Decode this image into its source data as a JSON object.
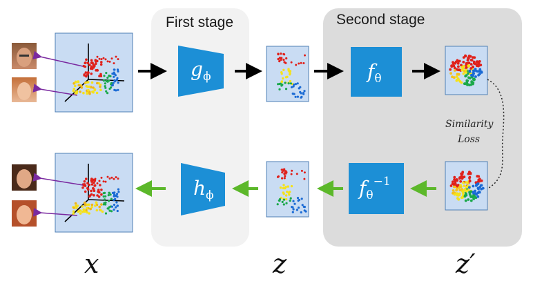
{
  "stages": {
    "first": "First stage",
    "second": "Second stage"
  },
  "similarity_loss": {
    "line1": "Similarity",
    "line2": "Loss"
  },
  "variables": {
    "x": "x",
    "z": "z",
    "z_prime": "z′"
  },
  "networks": {
    "encoder": {
      "symbol": "g",
      "subscript": "ϕ"
    },
    "flow": {
      "symbol": "f",
      "subscript": "θ"
    },
    "inverse_flow": {
      "symbol": "f",
      "subscript": "θ",
      "superscript": "−1"
    },
    "decoder": {
      "symbol": "h",
      "subscript": "ϕ"
    }
  },
  "colors": {
    "network_fill": "#1c8fd6",
    "panel_fill": "#c9dcf3",
    "forward_arrow": "#000000",
    "backward_arrow": "#5cb82a",
    "face_link": "#7a2aa0"
  },
  "icons": [
    "face-thumbnail",
    "3d-point-cloud",
    "latent-scatter",
    "gaussian-cluster"
  ]
}
